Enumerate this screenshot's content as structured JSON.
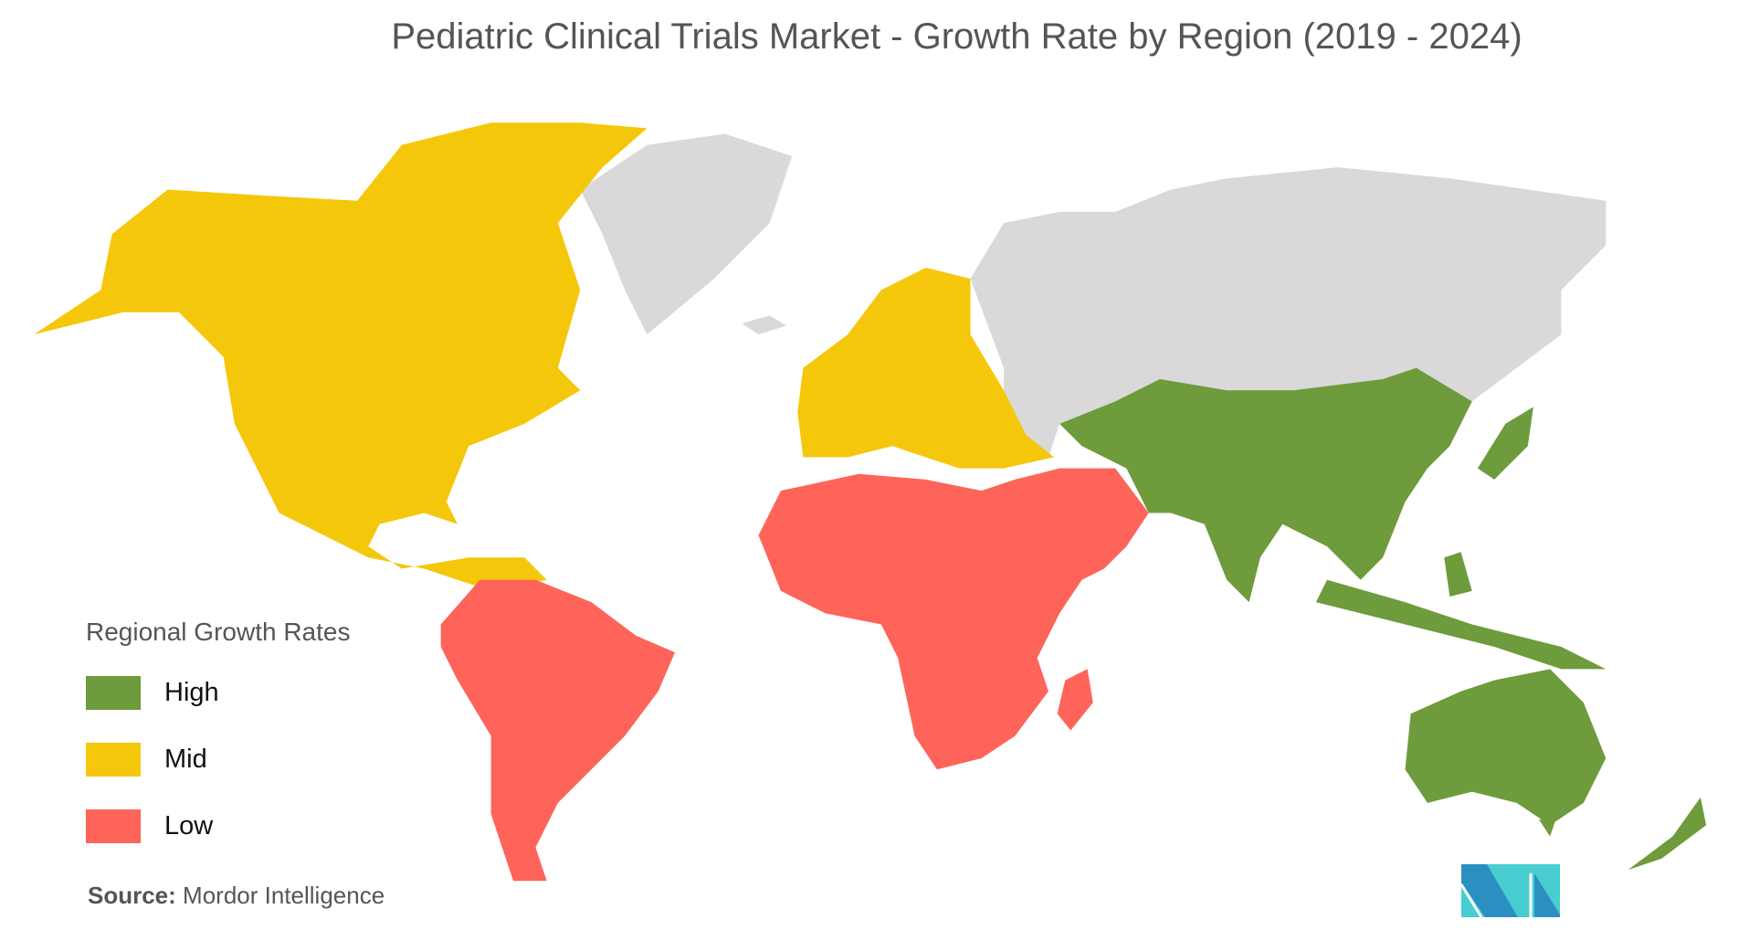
{
  "title": "Pediatric Clinical Trials Market - Growth Rate by Region (2019 - 2024)",
  "legend": {
    "title": "Regional Growth Rates",
    "items": [
      {
        "label": "High",
        "color": "#6e9b3c"
      },
      {
        "label": "Mid",
        "color": "#f5c70a"
      },
      {
        "label": "Low",
        "color": "#fe645a"
      }
    ]
  },
  "no_data_color": "#d9d9d9",
  "regions": {
    "Asia-Pacific": "High",
    "North America": "Mid",
    "Europe": "Mid",
    "Middle East and Africa": "Low",
    "South America": "Low"
  },
  "source": {
    "label": "Source:",
    "value": "Mordor Intelligence"
  },
  "logo": {
    "text": "MI"
  }
}
